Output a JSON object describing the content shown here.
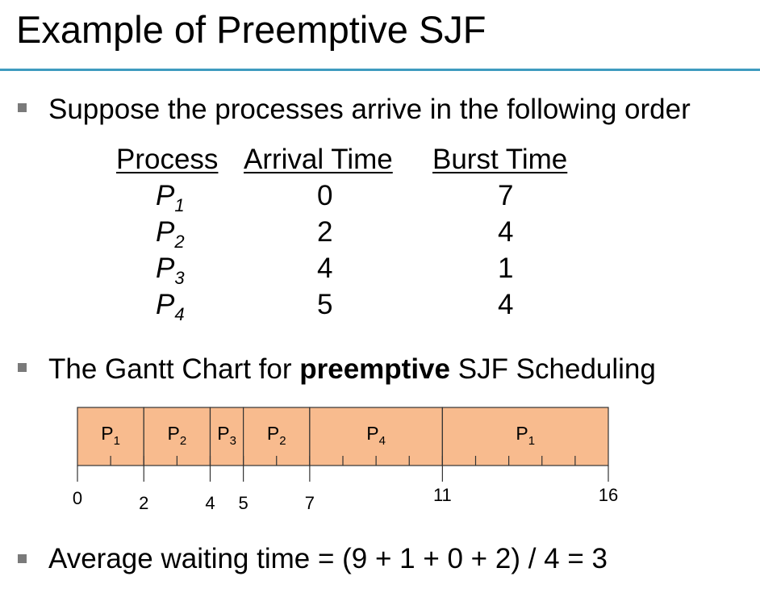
{
  "slide": {
    "title": "Example of Preemptive SJF"
  },
  "bullets": {
    "b1": "Suppose the processes arrive in the following order",
    "b2_pre": "The Gantt Chart for ",
    "b2_bold": "preemptive",
    "b2_post": " SJF Scheduling",
    "b3": "Average waiting time = (9 + 1 + 0 + 2) / 4 = 3"
  },
  "table": {
    "headers": [
      "Process",
      "Arrival Time",
      "Burst Time"
    ],
    "rows": [
      {
        "name": "P",
        "sub": "1",
        "arrival": "0",
        "burst": "7"
      },
      {
        "name": "P",
        "sub": "2",
        "arrival": "2",
        "burst": "4"
      },
      {
        "name": "P",
        "sub": "3",
        "arrival": "4",
        "burst": "1"
      },
      {
        "name": "P",
        "sub": "4",
        "arrival": "5",
        "burst": "4"
      }
    ]
  },
  "chart_data": {
    "type": "gantt",
    "segments": [
      {
        "label": "P",
        "sub": "1",
        "start": 0,
        "end": 2
      },
      {
        "label": "P",
        "sub": "2",
        "start": 2,
        "end": 4
      },
      {
        "label": "P",
        "sub": "3",
        "start": 4,
        "end": 5
      },
      {
        "label": "P",
        "sub": "2",
        "start": 5,
        "end": 7
      },
      {
        "label": "P",
        "sub": "4",
        "start": 7,
        "end": 11
      },
      {
        "label": "P",
        "sub": "1",
        "start": 11,
        "end": 16
      }
    ],
    "time_labels": [
      "0",
      "2",
      "4",
      "5",
      "7",
      "11",
      "16"
    ],
    "unit_ticks": true,
    "fill_color": "#f8bb8e",
    "border_color": "#333333"
  }
}
